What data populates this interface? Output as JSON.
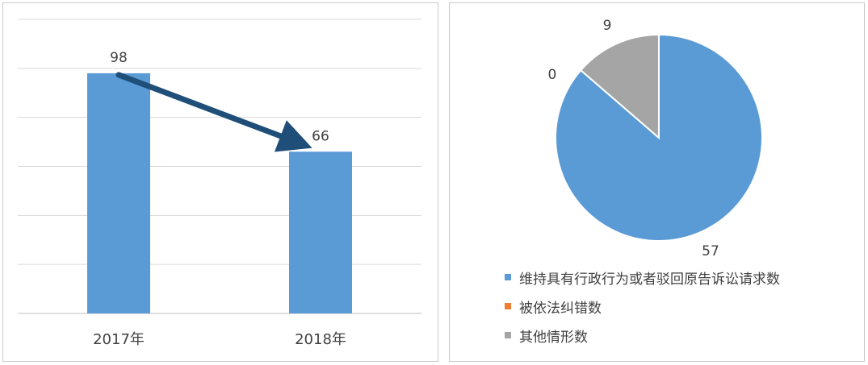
{
  "chart_data": [
    {
      "type": "bar",
      "categories": [
        "2017年",
        "2018年"
      ],
      "values": [
        98,
        66
      ],
      "data_labels": [
        "98",
        "66"
      ],
      "color": "#5b9bd5",
      "arrow_color": "#1f4e79",
      "grid": true,
      "ylim": [
        0,
        120
      ]
    },
    {
      "type": "pie",
      "labels": [
        "维持具有行政行为或者驳回原告诉讼请求数",
        "被依法纠错数",
        "其他情形数"
      ],
      "values": [
        57,
        0,
        9
      ],
      "data_labels": [
        "57",
        "0",
        "9"
      ],
      "colors": [
        "#5b9bd5",
        "#ed7d31",
        "#a5a5a5"
      ],
      "legend_position": "bottom-left"
    }
  ]
}
